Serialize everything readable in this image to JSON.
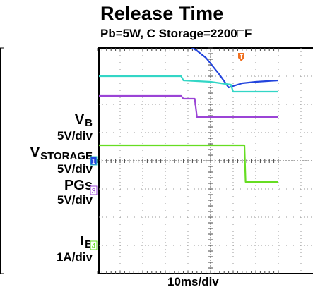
{
  "title": "Release Time",
  "subtitle": "Pb=5W, C Storage=2200□F",
  "xlabel": "10ms/div",
  "channels": [
    {
      "name": "V",
      "sub": "B",
      "scale": "5V/div",
      "marker": "",
      "color": "#2244dd"
    },
    {
      "name": "V",
      "sub": "STORAGE",
      "scale": "5V/div",
      "marker": "1",
      "color": "#33d6c6"
    },
    {
      "name": "PGs",
      "sub": "",
      "scale": "5V/div",
      "marker": "3",
      "color": "#9b44d6"
    },
    {
      "name": "I",
      "sub": "B",
      "scale": "1A/div",
      "marker": "4",
      "color": "#66dd22"
    }
  ],
  "trigger_marker": "T",
  "chart_data": {
    "type": "line",
    "title": "Release Time",
    "subtitle": "Pb=5W, C Storage=2200□F",
    "xlabel": "10ms/div",
    "grid": true,
    "series": [
      {
        "name": "VB",
        "scale": "5V/div",
        "color": "#2244dd",
        "x": [
          -50,
          -18,
          -14,
          -10,
          -6,
          -2,
          0,
          4,
          8,
          14,
          20,
          30
        ],
        "values": [
          4.28,
          4.28,
          4.25,
          4.1,
          3.9,
          3.65,
          3.45,
          3.05,
          2.6,
          2.75,
          2.8,
          2.85
        ]
      },
      {
        "name": "VSTORAGE",
        "scale": "5V/div",
        "color": "#33d6c6",
        "x": [
          -50,
          -13,
          -12,
          0,
          9,
          10,
          30
        ],
        "values": [
          3.0,
          3.0,
          2.85,
          2.8,
          2.7,
          2.45,
          2.45
        ]
      },
      {
        "name": "PGs",
        "scale": "5V/div",
        "color": "#9b44d6",
        "x": [
          -50,
          -13,
          -12,
          -7,
          -6,
          30
        ],
        "values": [
          2.3,
          2.3,
          2.2,
          2.2,
          1.55,
          1.55
        ]
      },
      {
        "name": "IB",
        "scale": "1A/div",
        "color": "#66dd22",
        "x": [
          -50,
          15,
          15.5,
          30
        ],
        "values": [
          0.55,
          0.55,
          -0.75,
          -0.75
        ]
      }
    ]
  }
}
